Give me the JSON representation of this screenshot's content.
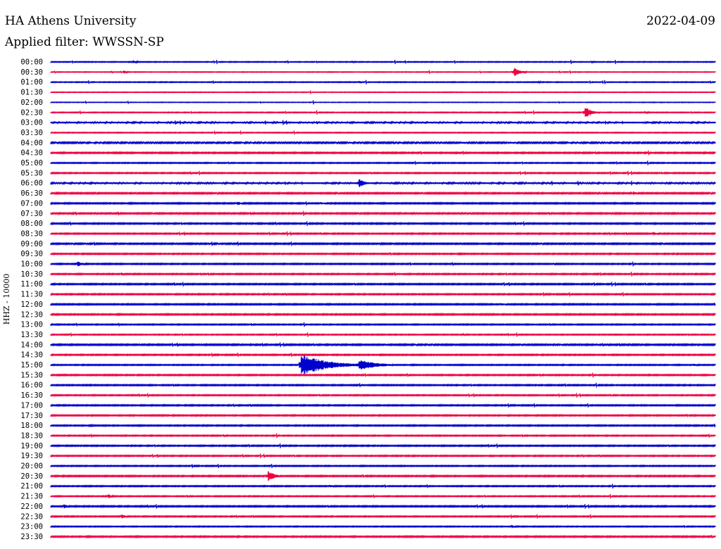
{
  "header": {
    "title": "HA Athens University",
    "filter": "Applied filter: WWSSN-SP",
    "date": "2022-04-09"
  },
  "chart_data": {
    "type": "line",
    "title": "HA Athens University",
    "subtitle": "Applied filter: WWSSN-SP",
    "date": "2022-04-09",
    "ylabel": "HHZ - 10000",
    "xlabel": "",
    "grid": false,
    "legend": "none",
    "colors": {
      "even_rows": "#0000cc",
      "odd_rows": "#ee0040"
    },
    "time_labels": [
      "00:00",
      "00:30",
      "01:00",
      "01:30",
      "02:00",
      "02:30",
      "03:00",
      "03:30",
      "04:00",
      "04:30",
      "05:00",
      "05:30",
      "06:00",
      "06:30",
      "07:00",
      "07:30",
      "08:00",
      "08:30",
      "09:00",
      "09:30",
      "10:00",
      "10:30",
      "11:00",
      "11:30",
      "12:00",
      "12:30",
      "13:00",
      "13:30",
      "14:00",
      "14:30",
      "15:00",
      "15:30",
      "16:00",
      "16:30",
      "17:00",
      "17:30",
      "18:00",
      "18:30",
      "19:00",
      "19:30",
      "20:00",
      "20:30",
      "21:00",
      "21:30",
      "22:00",
      "22:30",
      "23:00",
      "23:30"
    ],
    "row_minutes": 30,
    "noise_level": [
      1,
      0.8,
      1,
      0.8,
      0.7,
      1,
      2,
      1,
      1.8,
      1.5,
      1.2,
      1.3,
      2,
      1.6,
      1.5,
      1.6,
      1.5,
      1.4,
      1.6,
      1.4,
      1.4,
      1.4,
      1.5,
      1.4,
      1.5,
      1.5,
      1.3,
      1.2,
      1.6,
      1.4,
      1.3,
      1.4,
      1.4,
      1.3,
      1.4,
      1.4,
      1.4,
      1.3,
      1.4,
      1.3,
      1.3,
      1.5,
      1.3,
      1.2,
      1.5,
      1.3,
      1.2,
      1.5
    ],
    "events": [
      {
        "row": "00:00",
        "minute": 3.7,
        "amplitude": 2,
        "duration_min": 0.6
      },
      {
        "row": "00:00",
        "minute": 13.6,
        "amplitude": 1.5,
        "duration_min": 0.3
      },
      {
        "row": "00:00",
        "minute": 24.4,
        "amplitude": 1.5,
        "duration_min": 0.3
      },
      {
        "row": "00:30",
        "minute": 3.3,
        "amplitude": 2.5,
        "duration_min": 0.3
      },
      {
        "row": "00:30",
        "minute": 20.9,
        "amplitude": 7,
        "duration_min": 0.6
      },
      {
        "row": "01:00",
        "minute": 13.9,
        "amplitude": 2,
        "duration_min": 0.4
      },
      {
        "row": "01:00",
        "minute": 22.0,
        "amplitude": 2,
        "duration_min": 0.3
      },
      {
        "row": "02:30",
        "minute": 24.1,
        "amplitude": 9,
        "duration_min": 0.7
      },
      {
        "row": "02:30",
        "minute": 26.8,
        "amplitude": 2.5,
        "duration_min": 0.4
      },
      {
        "row": "05:00",
        "minute": 17.2,
        "amplitude": 2,
        "duration_min": 0.3
      },
      {
        "row": "06:00",
        "minute": 13.9,
        "amplitude": 7,
        "duration_min": 0.6
      },
      {
        "row": "06:30",
        "minute": 26.3,
        "amplitude": 3.5,
        "duration_min": 0.3
      },
      {
        "row": "07:00",
        "minute": 8.4,
        "amplitude": 3.5,
        "duration_min": 0.5
      },
      {
        "row": "07:00",
        "minute": 12.2,
        "amplitude": 2.5,
        "duration_min": 0.4
      },
      {
        "row": "08:30",
        "minute": 27.2,
        "amplitude": 3,
        "duration_min": 0.5
      },
      {
        "row": "10:00",
        "minute": 1.2,
        "amplitude": 4,
        "duration_min": 0.6
      },
      {
        "row": "10:00",
        "minute": 22.7,
        "amplitude": 1.5,
        "duration_min": 0.4
      },
      {
        "row": "10:30",
        "minute": 3.2,
        "amplitude": 2.5,
        "duration_min": 0.3
      },
      {
        "row": "12:00",
        "minute": 20.3,
        "amplitude": 2.5,
        "duration_min": 0.6
      },
      {
        "row": "13:30",
        "minute": 18.6,
        "amplitude": 1.5,
        "duration_min": 0.6
      },
      {
        "row": "15:00",
        "minute": 11.3,
        "amplitude": 16,
        "duration_min": 2.5
      },
      {
        "row": "15:00",
        "minute": 13.9,
        "amplitude": 9,
        "duration_min": 1.6
      },
      {
        "row": "15:00",
        "minute": 29.0,
        "amplitude": 2.5,
        "duration_min": 0.4
      },
      {
        "row": "20:30",
        "minute": 9.8,
        "amplitude": 9,
        "duration_min": 0.6
      },
      {
        "row": "21:00",
        "minute": 12.6,
        "amplitude": 2.5,
        "duration_min": 0.4
      },
      {
        "row": "21:30",
        "minute": 2.6,
        "amplitude": 3,
        "duration_min": 0.4
      },
      {
        "row": "22:00",
        "minute": 0.6,
        "amplitude": 3.5,
        "duration_min": 0.4
      },
      {
        "row": "22:30",
        "minute": 3.2,
        "amplitude": 3.5,
        "duration_min": 0.4
      },
      {
        "row": "23:00",
        "minute": 20.8,
        "amplitude": 2.5,
        "duration_min": 0.4
      }
    ]
  }
}
